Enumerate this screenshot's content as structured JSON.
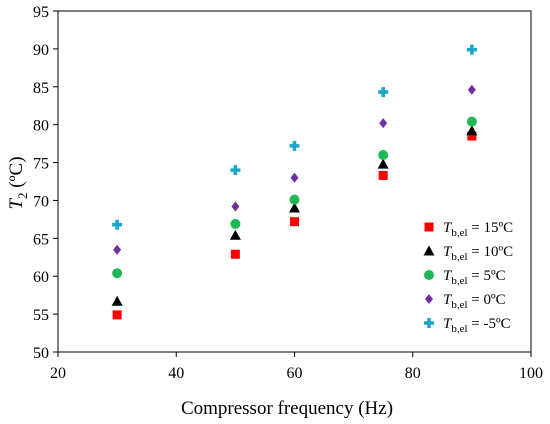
{
  "chart_data": {
    "type": "scatter",
    "xlabel": "Compressor frequency (Hz)",
    "ylabel": {
      "main": "T",
      "sub": "2",
      "rest": " (ºC)"
    },
    "xlim": [
      20,
      100
    ],
    "ylim": [
      50,
      95
    ],
    "xticks": [
      "20",
      "40",
      "60",
      "80",
      "100"
    ],
    "yticks": [
      "50",
      "55",
      "60",
      "65",
      "70",
      "75",
      "80",
      "85",
      "90",
      "95"
    ],
    "grid": false,
    "legend_position": "right-inside",
    "series": [
      {
        "name": {
          "main": "T",
          "sub": "b,el",
          "rest": " = 15ºC"
        },
        "marker": "square",
        "color": "#ff0000",
        "points": [
          [
            30,
            54.9
          ],
          [
            50,
            62.9
          ],
          [
            60,
            67.2
          ],
          [
            75,
            73.3
          ],
          [
            90,
            78.5
          ]
        ]
      },
      {
        "name": {
          "main": "T",
          "sub": "b,el",
          "rest": " = 10ºC"
        },
        "marker": "triangle",
        "color": "#000000",
        "points": [
          [
            30,
            56.7
          ],
          [
            50,
            65.4
          ],
          [
            60,
            69.0
          ],
          [
            75,
            74.8
          ],
          [
            90,
            79.2
          ]
        ]
      },
      {
        "name": {
          "main": "T",
          "sub": "b,el",
          "rest": " = 5ºC"
        },
        "marker": "circle",
        "color": "#1db954",
        "points": [
          [
            30,
            60.4
          ],
          [
            50,
            66.9
          ],
          [
            60,
            70.1
          ],
          [
            75,
            76.0
          ],
          [
            90,
            80.4
          ]
        ]
      },
      {
        "name": {
          "main": "T",
          "sub": "b,el",
          "rest": " = 0ºC"
        },
        "marker": "diamond",
        "color": "#7030a0",
        "points": [
          [
            30,
            63.5
          ],
          [
            50,
            69.2
          ],
          [
            60,
            73.0
          ],
          [
            75,
            80.2
          ],
          [
            90,
            84.6
          ]
        ]
      },
      {
        "name": {
          "main": "T",
          "sub": "b,el",
          "rest": " = -5ºC"
        },
        "marker": "cross",
        "color": "#1ba8c8",
        "points": [
          [
            30,
            66.8
          ],
          [
            50,
            74.0
          ],
          [
            60,
            77.2
          ],
          [
            75,
            84.3
          ],
          [
            90,
            89.9
          ]
        ]
      }
    ]
  }
}
